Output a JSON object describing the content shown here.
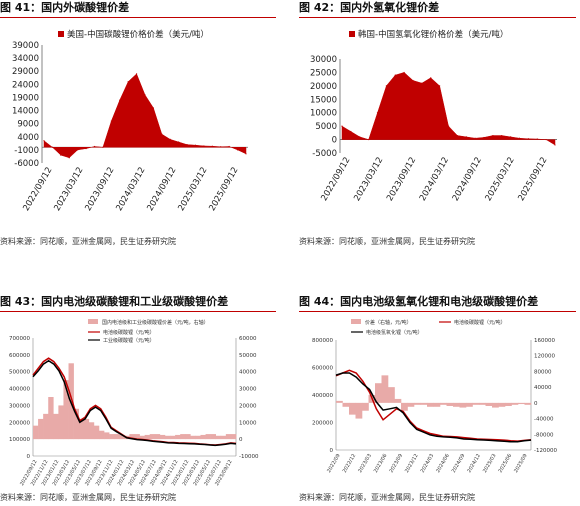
{
  "colors": {
    "accent": "#c00000",
    "black": "#000000",
    "pink": "#e8aaa8"
  },
  "chart_data": [
    {
      "type": "area",
      "figure_label": "图 41：国内外碳酸锂价差",
      "source": "资料来源：同花顺，亚洲金属网，民生证券研究院",
      "legend": [
        "美国-中国碳酸锂价格价差（美元/吨）"
      ],
      "legend_position": "top",
      "ylim": [
        -6000,
        39000
      ],
      "yticks": [
        "39000",
        "34000",
        "29000",
        "24000",
        "19000",
        "14000",
        "9000",
        "4000",
        "-1000",
        "-6000"
      ],
      "xtick_labels": [
        "2022/09/12",
        "2023/03/12",
        "2023/09/12",
        "2024/03/12",
        "2024/09/12",
        "2025/03/12",
        "2025/09/12"
      ],
      "series": [
        {
          "name": "美国-中国碳酸锂价格价差（美元/吨）",
          "x": [
            "2022/09",
            "2022/10",
            "2022/11",
            "2022/12",
            "2023/01",
            "2023/02",
            "2023/03",
            "2023/04",
            "2023/05",
            "2023/06",
            "2023/07",
            "2023/08",
            "2023/09",
            "2023/10",
            "2023/11",
            "2023/12",
            "2024/01",
            "2024/03",
            "2024/06",
            "2024/09",
            "2024/12",
            "2025/03",
            "2025/06",
            "2025/09",
            "2025/10"
          ],
          "values": [
            2500,
            0,
            -3000,
            -4000,
            -1000,
            -500,
            300,
            0,
            10000,
            18000,
            25000,
            28000,
            20000,
            15000,
            5000,
            3000,
            2000,
            1000,
            800,
            500,
            400,
            200,
            300,
            -1000,
            -2500
          ]
        }
      ]
    },
    {
      "type": "area",
      "figure_label": "图 42：国内外氢氧化锂价差",
      "source": "资料来源：同花顺，亚洲金属网，民生证券研究院",
      "legend": [
        "韩国-中国氢氧化锂价格价差（美元/吨）"
      ],
      "legend_position": "top",
      "ylim": [
        -5000,
        30000
      ],
      "yticks": [
        "30000",
        "25000",
        "20000",
        "15000",
        "10000",
        "5000",
        "0",
        "-5000"
      ],
      "xtick_labels": [
        "2022/09/12",
        "2023/03/12",
        "2023/09/12",
        "2024/03/12",
        "2024/09/12",
        "2025/03/12",
        "2025/09/12"
      ],
      "series": [
        {
          "name": "韩国-中国氢氧化锂价格价差（美元/吨）",
          "x": [
            "2022/09",
            "2022/10",
            "2022/11",
            "2022/12",
            "2023/01",
            "2023/02",
            "2023/03",
            "2023/04",
            "2023/05",
            "2023/06",
            "2023/07",
            "2023/08",
            "2023/09",
            "2023/10",
            "2023/11",
            "2023/12",
            "2024/01",
            "2024/03",
            "2024/06",
            "2024/09",
            "2024/12",
            "2025/03",
            "2025/06",
            "2025/09",
            "2025/10"
          ],
          "values": [
            5000,
            3000,
            1000,
            0,
            10000,
            20000,
            24000,
            25000,
            22000,
            21000,
            23000,
            20000,
            5000,
            1500,
            1000,
            500,
            800,
            1500,
            1500,
            1000,
            500,
            300,
            200,
            0,
            -2000
          ]
        }
      ]
    },
    {
      "type": "line",
      "figure_label": "图 43：国内电池级碳酸锂和工业级碳酸锂价差",
      "source": "资料来源：同花顺，亚洲金属网，民生证券研究院",
      "legend": [
        "国内电池级和工业级碳酸锂价差（元/吨，右轴）",
        "电池级碳酸锂（元/吨）",
        "工业级碳酸锂（元/吨）"
      ],
      "legend_position": "top",
      "ylim_left": [
        0,
        700000
      ],
      "ylim_right": [
        -10000,
        60000
      ],
      "yticks_left": [
        "700000",
        "600000",
        "500000",
        "400000",
        "300000",
        "200000",
        "100000",
        "0"
      ],
      "yticks_right": [
        "60000",
        "50000",
        "40000",
        "30000",
        "20000",
        "10000",
        "0",
        "-10000"
      ],
      "xtick_labels": [
        "2022/09/12",
        "2022/11/12",
        "2023/01/12",
        "2023/03/12",
        "2023/05/12",
        "2023/07/12",
        "2023/09/12",
        "2023/11/12",
        "2024/01/12",
        "2024/03/12",
        "2024/05/12",
        "2024/07/12",
        "2024/09/12",
        "2024/11/12",
        "2025/01/12",
        "2025/03/12",
        "2025/05/12",
        "2025/07/12",
        "2025/09/12"
      ],
      "series": [
        {
          "name": "国内电池级和工业级碳酸锂价差（元/吨，右轴）",
          "axis": "right",
          "kind": "bar",
          "values": [
            8000,
            12000,
            15000,
            25000,
            15000,
            20000,
            35000,
            45000,
            18000,
            12000,
            12000,
            10000,
            8000,
            5000,
            4000,
            3000,
            3000,
            2500,
            2000,
            3000,
            3000,
            2000,
            2500,
            3000,
            3000,
            2500,
            2000,
            2000,
            2500,
            3000,
            3000,
            2000,
            2000,
            2500,
            3000,
            3000,
            2000,
            2000,
            3000,
            3000
          ]
        },
        {
          "name": "电池级碳酸锂（元/吨）",
          "axis": "left",
          "kind": "line",
          "values": [
            480000,
            520000,
            560000,
            580000,
            560000,
            520000,
            470000,
            380000,
            280000,
            210000,
            230000,
            280000,
            300000,
            280000,
            230000,
            170000,
            150000,
            130000,
            110000,
            105000,
            100000,
            98000,
            95000,
            90000,
            88000,
            85000,
            80000,
            80000,
            78000,
            77000,
            76000,
            75000,
            72000,
            70000,
            67000,
            65000,
            68000,
            72000,
            78000,
            75000
          ]
        },
        {
          "name": "工业级碳酸锂（元/吨）",
          "axis": "left",
          "kind": "line",
          "values": [
            470000,
            505000,
            545000,
            565000,
            545000,
            505000,
            440000,
            340000,
            265000,
            200000,
            220000,
            270000,
            290000,
            270000,
            220000,
            165000,
            145000,
            127000,
            108000,
            102000,
            97000,
            95000,
            92000,
            87000,
            85000,
            82000,
            78000,
            77000,
            75000,
            74000,
            73000,
            72000,
            70000,
            68000,
            65000,
            63000,
            66000,
            70000,
            75000,
            72000
          ]
        }
      ]
    },
    {
      "type": "line",
      "figure_label": "图 44：国内电池级氢氧化锂和电池级碳酸锂价差",
      "source": "资料来源：同花顺，亚洲金属网，民生证券研究院",
      "legend": [
        "价差（右轴，元/吨）",
        "电池级碳酸锂（元/吨）",
        "电池级氢氧化锂（元/吨）"
      ],
      "legend_position": "top",
      "ylim_left": [
        0,
        800000
      ],
      "ylim_right": [
        -120000,
        160000
      ],
      "yticks_left": [
        "800000",
        "600000",
        "400000",
        "200000",
        "0"
      ],
      "yticks_right": [
        "160000",
        "120000",
        "80000",
        "40000",
        "0",
        "-40000",
        "-80000",
        "-120000"
      ],
      "xtick_labels": [
        "2022/09",
        "2022/12",
        "2023/03",
        "2023/06",
        "2023/09",
        "2023/12",
        "2024/03",
        "2024/06",
        "2024/09",
        "2024/12",
        "2025/03",
        "2025/06",
        "2025/09"
      ],
      "series": [
        {
          "name": "价差（右轴，元/吨）",
          "axis": "right",
          "kind": "bar",
          "values": [
            5000,
            -10000,
            -30000,
            -40000,
            -20000,
            20000,
            50000,
            70000,
            40000,
            10000,
            -20000,
            -10000,
            -5000,
            -5000,
            -10000,
            -10000,
            -5000,
            -8000,
            -10000,
            -12000,
            -10000,
            -5000,
            -5000,
            -8000,
            -12000,
            -10000,
            -8000,
            -5000,
            -3000,
            -5000
          ]
        },
        {
          "name": "电池级碳酸锂（元/吨）",
          "axis": "left",
          "kind": "line",
          "values": [
            540000,
            560000,
            580000,
            560000,
            500000,
            420000,
            300000,
            220000,
            260000,
            300000,
            280000,
            210000,
            160000,
            140000,
            120000,
            110000,
            100000,
            98000,
            95000,
            90000,
            85000,
            80000,
            78000,
            76000,
            74000,
            72000,
            68000,
            65000,
            70000,
            75000
          ]
        },
        {
          "name": "电池级氢氧化锂（元/吨）",
          "axis": "left",
          "kind": "line",
          "values": [
            545000,
            560000,
            560000,
            530000,
            480000,
            440000,
            350000,
            290000,
            300000,
            310000,
            270000,
            200000,
            150000,
            130000,
            110000,
            100000,
            95000,
            92000,
            88000,
            80000,
            78000,
            75000,
            73000,
            70000,
            66000,
            63000,
            60000,
            60000,
            67000,
            72000
          ]
        }
      ]
    }
  ]
}
